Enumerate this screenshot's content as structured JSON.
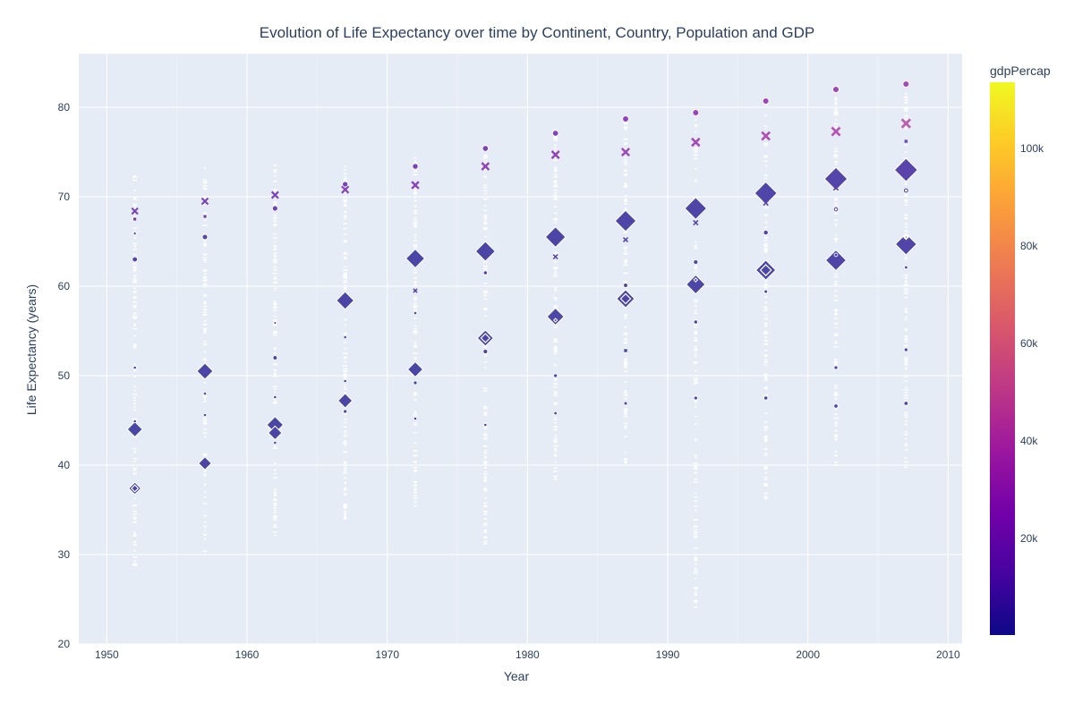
{
  "chart_data": {
    "type": "scatter",
    "title": "Evolution of Life Expectancy over time by Continent, Country, Population and GDP",
    "xlabel": "Year",
    "ylabel": "Life Expectancy (years)",
    "xlim": [
      1948,
      2011
    ],
    "ylim": [
      20,
      86
    ],
    "xticks": [
      1950,
      1960,
      1970,
      1980,
      1990,
      2000,
      2010
    ],
    "yticks": [
      20,
      30,
      40,
      50,
      60,
      70,
      80
    ],
    "grid": true,
    "color_scale": {
      "title": "gdpPercap",
      "min": 241,
      "max": 113523,
      "ticks": [
        20000,
        40000,
        60000,
        80000,
        100000
      ],
      "tick_labels": [
        "20k",
        "40k",
        "60k",
        "80k",
        "100k"
      ],
      "colors": [
        "#0d0887",
        "#46039f",
        "#7201a8",
        "#9c179e",
        "#bd3786",
        "#d8576b",
        "#ed7953",
        "#fb9f3a",
        "#fdca26",
        "#f0f921"
      ]
    },
    "points": [
      {
        "x": 1952,
        "y": 44.0,
        "size": 556,
        "gdp": 400,
        "symbol": "diamond"
      },
      {
        "x": 1952,
        "y": 37.4,
        "size": 372,
        "gdp": 546,
        "symbol": "diamond-open-dot"
      },
      {
        "x": 1952,
        "y": 68.4,
        "size": 157,
        "gdp": 13990,
        "symbol": "x"
      },
      {
        "x": 1952,
        "y": 63.0,
        "size": 86,
        "gdp": 3217,
        "symbol": "circle"
      },
      {
        "x": 1952,
        "y": 67.5,
        "size": 50,
        "gdp": 9980,
        "symbol": "square"
      },
      {
        "x": 1952,
        "y": 65.9,
        "size": 40,
        "gdp": 7144,
        "symbol": "diamond"
      },
      {
        "x": 1952,
        "y": 50.9,
        "size": 30,
        "gdp": 1300,
        "symbol": "circle"
      },
      {
        "x": 1952,
        "y": 44.9,
        "size": 25,
        "gdp": 800,
        "symbol": "circle"
      },
      {
        "x": 1957,
        "y": 50.5,
        "size": 637,
        "gdp": 575,
        "symbol": "diamond"
      },
      {
        "x": 1957,
        "y": 40.2,
        "size": 409,
        "gdp": 590,
        "symbol": "diamond"
      },
      {
        "x": 1957,
        "y": 69.5,
        "size": 171,
        "gdp": 14847,
        "symbol": "x"
      },
      {
        "x": 1957,
        "y": 65.5,
        "size": 91,
        "gdp": 3400,
        "symbol": "circle"
      },
      {
        "x": 1957,
        "y": 67.8,
        "size": 50,
        "gdp": 10043,
        "symbol": "square"
      },
      {
        "x": 1957,
        "y": 45.6,
        "size": 30,
        "gdp": 900,
        "symbol": "circle"
      },
      {
        "x": 1957,
        "y": 48.0,
        "size": 25,
        "gdp": 1200,
        "symbol": "circle"
      },
      {
        "x": 1962,
        "y": 44.5,
        "size": 666,
        "gdp": 487,
        "symbol": "diamond"
      },
      {
        "x": 1962,
        "y": 43.6,
        "size": 454,
        "gdp": 658,
        "symbol": "diamond"
      },
      {
        "x": 1962,
        "y": 70.2,
        "size": 186,
        "gdp": 16173,
        "symbol": "x"
      },
      {
        "x": 1962,
        "y": 68.7,
        "size": 95,
        "gdp": 10750,
        "symbol": "circle"
      },
      {
        "x": 1962,
        "y": 52.0,
        "size": 60,
        "gdp": 1500,
        "symbol": "circle"
      },
      {
        "x": 1962,
        "y": 47.6,
        "size": 30,
        "gdp": 1100,
        "symbol": "circle"
      },
      {
        "x": 1962,
        "y": 55.9,
        "size": 30,
        "gdp": 2500,
        "symbol": "diamond"
      },
      {
        "x": 1962,
        "y": 42.5,
        "size": 30,
        "gdp": 700,
        "symbol": "circle"
      },
      {
        "x": 1967,
        "y": 58.4,
        "size": 755,
        "gdp": 613,
        "symbol": "diamond"
      },
      {
        "x": 1967,
        "y": 47.2,
        "size": 506,
        "gdp": 700,
        "symbol": "diamond"
      },
      {
        "x": 1967,
        "y": 70.8,
        "size": 198,
        "gdp": 19530,
        "symbol": "x"
      },
      {
        "x": 1967,
        "y": 71.4,
        "size": 100,
        "gdp": 12500,
        "symbol": "circle"
      },
      {
        "x": 1967,
        "y": 46.0,
        "size": 45,
        "gdp": 1200,
        "symbol": "circle"
      },
      {
        "x": 1967,
        "y": 54.3,
        "size": 30,
        "gdp": 1800,
        "symbol": "circle"
      },
      {
        "x": 1967,
        "y": 49.4,
        "size": 30,
        "gdp": 1400,
        "symbol": "circle"
      },
      {
        "x": 1972,
        "y": 63.1,
        "size": 862,
        "gdp": 676,
        "symbol": "diamond"
      },
      {
        "x": 1972,
        "y": 50.7,
        "size": 567,
        "gdp": 724,
        "symbol": "diamond"
      },
      {
        "x": 1972,
        "y": 71.3,
        "size": 209,
        "gdp": 21806,
        "symbol": "x"
      },
      {
        "x": 1972,
        "y": 73.4,
        "size": 107,
        "gdp": 14778,
        "symbol": "circle"
      },
      {
        "x": 1972,
        "y": 59.5,
        "size": 60,
        "gdp": 3000,
        "symbol": "x"
      },
      {
        "x": 1972,
        "y": 49.2,
        "size": 45,
        "gdp": 1300,
        "symbol": "circle"
      },
      {
        "x": 1972,
        "y": 57.0,
        "size": 30,
        "gdp": 2200,
        "symbol": "circle"
      },
      {
        "x": 1972,
        "y": 45.2,
        "size": 30,
        "gdp": 1000,
        "symbol": "circle"
      },
      {
        "x": 1977,
        "y": 63.9,
        "size": 943,
        "gdp": 742,
        "symbol": "diamond"
      },
      {
        "x": 1977,
        "y": 54.2,
        "size": 634,
        "gdp": 813,
        "symbol": "diamond-open-dot"
      },
      {
        "x": 1977,
        "y": 73.4,
        "size": 220,
        "gdp": 24072,
        "symbol": "x"
      },
      {
        "x": 1977,
        "y": 75.4,
        "size": 113,
        "gdp": 16610,
        "symbol": "circle"
      },
      {
        "x": 1977,
        "y": 52.7,
        "size": 70,
        "gdp": 1500,
        "symbol": "circle"
      },
      {
        "x": 1977,
        "y": 61.5,
        "size": 50,
        "gdp": 3500,
        "symbol": "circle"
      },
      {
        "x": 1977,
        "y": 44.5,
        "size": 30,
        "gdp": 900,
        "symbol": "circle"
      },
      {
        "x": 1982,
        "y": 65.5,
        "size": 1000,
        "gdp": 962,
        "symbol": "diamond"
      },
      {
        "x": 1982,
        "y": 56.6,
        "size": 708,
        "gdp": 855,
        "symbol": "diamond"
      },
      {
        "x": 1982,
        "y": 74.7,
        "size": 232,
        "gdp": 25009,
        "symbol": "x"
      },
      {
        "x": 1982,
        "y": 77.1,
        "size": 118,
        "gdp": 19384,
        "symbol": "circle"
      },
      {
        "x": 1982,
        "y": 63.3,
        "size": 80,
        "gdp": 3800,
        "symbol": "x"
      },
      {
        "x": 1982,
        "y": 50.0,
        "size": 45,
        "gdp": 1300,
        "symbol": "circle"
      },
      {
        "x": 1982,
        "y": 45.8,
        "size": 35,
        "gdp": 900,
        "symbol": "circle"
      },
      {
        "x": 1982,
        "y": 56.2,
        "size": 30,
        "gdp": 700,
        "symbol": "diamond"
      },
      {
        "x": 1987,
        "y": 67.3,
        "size": 1084,
        "gdp": 1379,
        "symbol": "diamond"
      },
      {
        "x": 1987,
        "y": 58.6,
        "size": 789,
        "gdp": 977,
        "symbol": "diamond-open-dot"
      },
      {
        "x": 1987,
        "y": 75.0,
        "size": 242,
        "gdp": 29884,
        "symbol": "x"
      },
      {
        "x": 1987,
        "y": 78.7,
        "size": 122,
        "gdp": 22376,
        "symbol": "circle"
      },
      {
        "x": 1987,
        "y": 65.2,
        "size": 85,
        "gdp": 4000,
        "symbol": "x"
      },
      {
        "x": 1987,
        "y": 60.1,
        "size": 60,
        "gdp": 2500,
        "symbol": "circle"
      },
      {
        "x": 1987,
        "y": 46.9,
        "size": 40,
        "gdp": 1100,
        "symbol": "circle"
      },
      {
        "x": 1987,
        "y": 52.8,
        "size": 30,
        "gdp": 1500,
        "symbol": "x"
      },
      {
        "x": 1992,
        "y": 68.7,
        "size": 1165,
        "gdp": 1656,
        "symbol": "diamond"
      },
      {
        "x": 1992,
        "y": 60.2,
        "size": 872,
        "gdp": 1164,
        "symbol": "diamond"
      },
      {
        "x": 1992,
        "y": 76.1,
        "size": 256,
        "gdp": 32004,
        "symbol": "x"
      },
      {
        "x": 1992,
        "y": 79.4,
        "size": 124,
        "gdp": 26825,
        "symbol": "circle"
      },
      {
        "x": 1992,
        "y": 67.1,
        "size": 90,
        "gdp": 4500,
        "symbol": "x"
      },
      {
        "x": 1992,
        "y": 62.7,
        "size": 70,
        "gdp": 2800,
        "symbol": "circle"
      },
      {
        "x": 1992,
        "y": 56.0,
        "size": 50,
        "gdp": 1900,
        "symbol": "circle"
      },
      {
        "x": 1992,
        "y": 47.5,
        "size": 45,
        "gdp": 1000,
        "symbol": "circle"
      },
      {
        "x": 1992,
        "y": 60.7,
        "size": 35,
        "gdp": 700,
        "symbol": "diamond"
      },
      {
        "x": 1997,
        "y": 70.4,
        "size": 1230,
        "gdp": 2289,
        "symbol": "diamond"
      },
      {
        "x": 1997,
        "y": 61.8,
        "size": 959,
        "gdp": 1459,
        "symbol": "diamond-open-dot"
      },
      {
        "x": 1997,
        "y": 76.8,
        "size": 272,
        "gdp": 35767,
        "symbol": "x"
      },
      {
        "x": 1997,
        "y": 80.7,
        "size": 125,
        "gdp": 28817,
        "symbol": "circle"
      },
      {
        "x": 1997,
        "y": 69.3,
        "size": 95,
        "gdp": 5000,
        "symbol": "x"
      },
      {
        "x": 1997,
        "y": 66.0,
        "size": 75,
        "gdp": 3000,
        "symbol": "circle"
      },
      {
        "x": 1997,
        "y": 47.5,
        "size": 50,
        "gdp": 1100,
        "symbol": "circle"
      },
      {
        "x": 1997,
        "y": 59.4,
        "size": 40,
        "gdp": 1800,
        "symbol": "circle"
      },
      {
        "x": 2002,
        "y": 72.0,
        "size": 1280,
        "gdp": 3119,
        "symbol": "diamond"
      },
      {
        "x": 2002,
        "y": 62.9,
        "size": 1034,
        "gdp": 1746,
        "symbol": "diamond"
      },
      {
        "x": 2002,
        "y": 77.3,
        "size": 288,
        "gdp": 39097,
        "symbol": "x"
      },
      {
        "x": 2002,
        "y": 82.0,
        "size": 127,
        "gdp": 28605,
        "symbol": "circle"
      },
      {
        "x": 2002,
        "y": 71.0,
        "size": 100,
        "gdp": 5500,
        "symbol": "x"
      },
      {
        "x": 2002,
        "y": 68.6,
        "size": 80,
        "gdp": 3500,
        "symbol": "circle-open-dot"
      },
      {
        "x": 2002,
        "y": 46.6,
        "size": 55,
        "gdp": 1200,
        "symbol": "circle"
      },
      {
        "x": 2002,
        "y": 50.9,
        "size": 45,
        "gdp": 1000,
        "symbol": "circle"
      },
      {
        "x": 2002,
        "y": 63.5,
        "size": 40,
        "gdp": 800,
        "symbol": "circle"
      },
      {
        "x": 2007,
        "y": 73.0,
        "size": 1319,
        "gdp": 4959,
        "symbol": "diamond"
      },
      {
        "x": 2007,
        "y": 64.7,
        "size": 1110,
        "gdp": 2452,
        "symbol": "diamond"
      },
      {
        "x": 2007,
        "y": 78.2,
        "size": 301,
        "gdp": 42952,
        "symbol": "x"
      },
      {
        "x": 2007,
        "y": 82.6,
        "size": 127,
        "gdp": 31656,
        "symbol": "circle"
      },
      {
        "x": 2007,
        "y": 72.4,
        "size": 110,
        "gdp": 6000,
        "symbol": "x"
      },
      {
        "x": 2007,
        "y": 70.7,
        "size": 90,
        "gdp": 4000,
        "symbol": "circle-open-dot"
      },
      {
        "x": 2007,
        "y": 65.5,
        "size": 60,
        "gdp": 1800,
        "symbol": "diamond-open-dot"
      },
      {
        "x": 2007,
        "y": 46.9,
        "size": 55,
        "gdp": 1100,
        "symbol": "circle"
      },
      {
        "x": 2007,
        "y": 52.9,
        "size": 45,
        "gdp": 1400,
        "symbol": "circle"
      },
      {
        "x": 2007,
        "y": 62.1,
        "size": 35,
        "gdp": 2000,
        "symbol": "circle"
      },
      {
        "x": 2007,
        "y": 76.2,
        "size": 30,
        "gdp": 9000,
        "symbol": "x"
      }
    ],
    "small_points": {
      "years": [
        1952,
        1957,
        1962,
        1967,
        1972,
        1977,
        1982,
        1987,
        1992,
        1997,
        2002,
        2007
      ],
      "ranges": [
        [
          28.8,
          72.5
        ],
        [
          30.3,
          73.5
        ],
        [
          31.9,
          73.7
        ],
        [
          34.0,
          74.2
        ],
        [
          35.4,
          74.7
        ],
        [
          31.2,
          75.5
        ],
        [
          38.4,
          77.1
        ],
        [
          39.9,
          78.7
        ],
        [
          23.6,
          79.4
        ],
        [
          36.1,
          80.7
        ],
        [
          39.2,
          82.0
        ],
        [
          39.6,
          82.6
        ]
      ],
      "count_per_year": 130,
      "color": "#ffffff"
    }
  }
}
